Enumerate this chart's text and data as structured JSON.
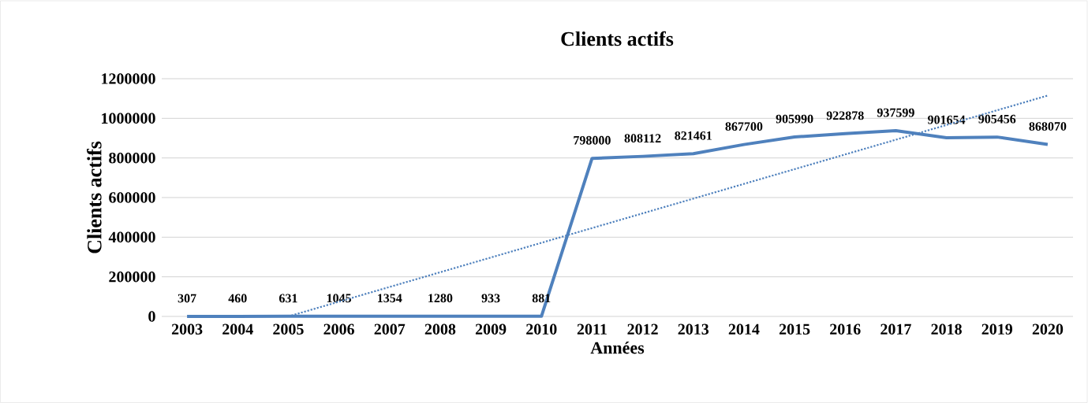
{
  "chart_data": {
    "type": "line",
    "title": "Clients actifs",
    "xlabel": "Années",
    "ylabel": "Clients actifs",
    "x": [
      2003,
      2004,
      2005,
      2006,
      2007,
      2008,
      2009,
      2010,
      2011,
      2012,
      2013,
      2014,
      2015,
      2016,
      2017,
      2018,
      2019,
      2020
    ],
    "xlim": [
      2002.5,
      2020.5
    ],
    "xticks": [
      2003,
      2004,
      2005,
      2006,
      2007,
      2008,
      2009,
      2010,
      2011,
      2012,
      2013,
      2014,
      2015,
      2016,
      2017,
      2018,
      2019,
      2020
    ],
    "ylim": [
      0,
      1200000
    ],
    "yticks": [
      0,
      200000,
      400000,
      600000,
      800000,
      1000000,
      1200000
    ],
    "grid": "y",
    "series": [
      {
        "color": "#4f81bd",
        "line_style": "solid",
        "data_labels": true,
        "values": [
          307,
          460,
          631,
          1045,
          1354,
          1280,
          933,
          881,
          798000,
          808112,
          821461,
          867700,
          905990,
          922878,
          937599,
          901654,
          905456,
          868070
        ]
      },
      {
        "type": "line",
        "color": "#4f81bd",
        "line_style": "dotted",
        "x": [
          2005,
          2020
        ],
        "values": [
          0,
          1115000
        ]
      }
    ]
  }
}
